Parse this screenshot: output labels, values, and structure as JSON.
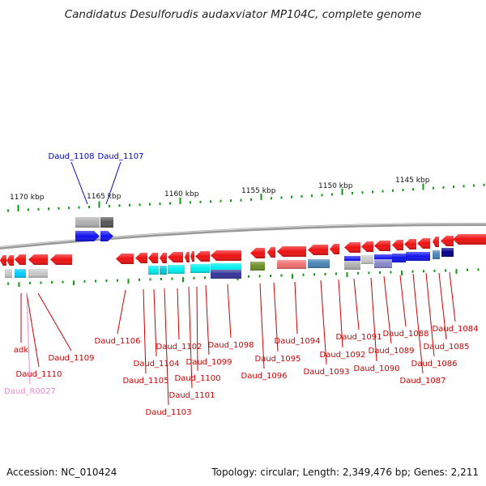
{
  "title": "Candidatus Desulforudis audaxviator MP104C, complete genome",
  "footer": {
    "accession": "Accession: NC_010424",
    "topology": "Topology: circular; Length: 2,349,476 bp; Genes: 2,211"
  },
  "colors": {
    "red_gene": "#ee1111",
    "rna": "#ee88cc",
    "label_red": "#cc0000",
    "label_blue": "#0000cc",
    "label_pink": "#ee88cc",
    "tick": "#119911",
    "backbone": "#888888"
  },
  "scale_labels": [
    "1170 kbp",
    "1165 kbp",
    "1160 kbp",
    "1155 kbp",
    "1150 kbp",
    "1145 kbp"
  ],
  "upper_labels": [
    "Daud_1108",
    "Daud_1107"
  ],
  "lower_labels": [
    "adk",
    "Daud_1110",
    "Daud_R0027",
    "Daud_1109",
    "Daud_1106",
    "Daud_1105",
    "Daud_1104",
    "Daud_1103",
    "Daud_1102",
    "Daud_1101",
    "Daud_1100",
    "Daud_1099",
    "Daud_1098",
    "Daud_1096",
    "Daud_1095",
    "Daud_1094",
    "Daud_1093",
    "Daud_1092",
    "Daud_1091",
    "Daud_1090",
    "Daud_1089",
    "Daud_1088",
    "Daud_1087",
    "Daud_1086",
    "Daud_1085",
    "Daud_1084"
  ]
}
